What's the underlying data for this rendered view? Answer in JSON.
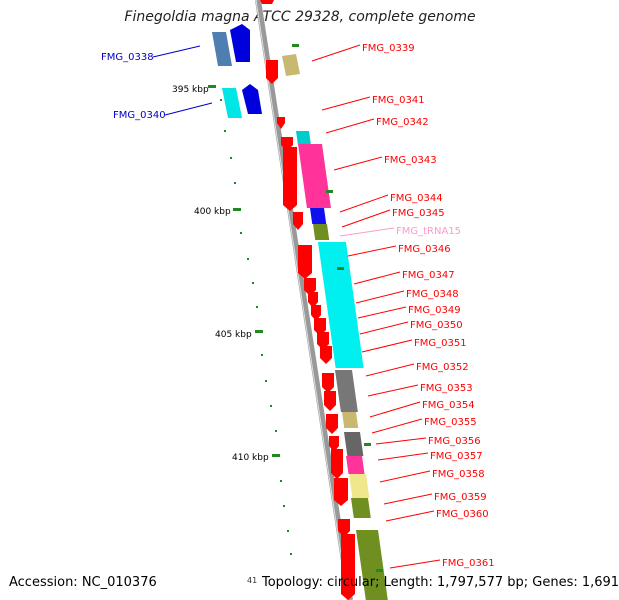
{
  "title": "Finegoldia magna ATCC 29328, complete genome",
  "accession": "Accession: NC_010376",
  "summary": "Topology: circular; Length: 1,797,577 bp; Genes: 1,691",
  "footer_tick": "41",
  "scale_labels": [
    "395 kbp",
    "400 kbp",
    "405 kbp",
    "410 kbp"
  ],
  "colors": {
    "cds": "#ff0000",
    "trna": "#ff99cc",
    "left_label": "#0000cc",
    "backbone": "#999999",
    "tick": "#228822"
  },
  "left_genes": [
    {
      "label": "FMG_0338",
      "color_a": "#4f7fb0",
      "color_b": "#0000dd"
    },
    {
      "label": "FMG_0340",
      "color_a": "#00e5e5",
      "color_b": "#0000dd"
    }
  ],
  "right_labels": [
    "FMG_0339",
    "FMG_0341",
    "FMG_0342",
    "FMG_0343",
    "FMG_0344",
    "FMG_0345",
    "FMG_tRNA15",
    "FMG_0346",
    "FMG_0347",
    "FMG_0348",
    "FMG_0349",
    "FMG_0350",
    "FMG_0351",
    "FMG_0352",
    "FMG_0353",
    "FMG_0354",
    "FMG_0355",
    "FMG_0356",
    "FMG_0357",
    "FMG_0358",
    "FMG_0359",
    "FMG_0360",
    "FMG_0361"
  ],
  "cog_colors": [
    "#00cccc",
    "#ff3399",
    "#1010ee",
    "#6f8f20",
    "#00f0f0",
    "#777777",
    "#c8b870",
    "#666666",
    "#ff3399",
    "#f0e68c",
    "#6f8f20",
    "#6f8f20"
  ]
}
